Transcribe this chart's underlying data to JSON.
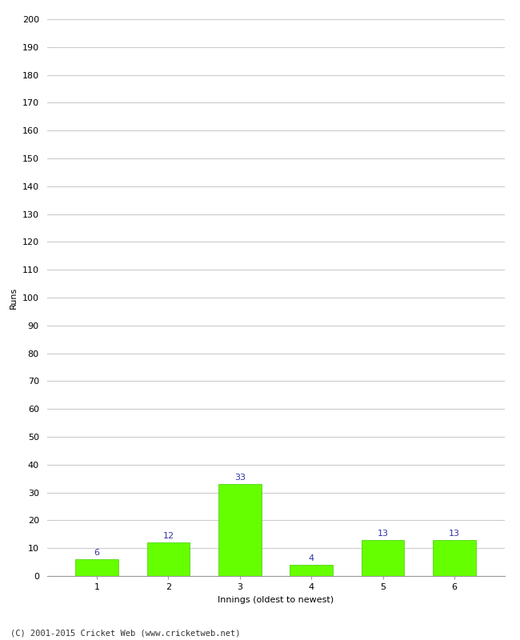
{
  "categories": [
    1,
    2,
    3,
    4,
    5,
    6
  ],
  "values": [
    6,
    12,
    33,
    4,
    13,
    13
  ],
  "bar_color": "#66ff00",
  "bar_edge_color": "#44cc00",
  "xlabel": "Innings (oldest to newest)",
  "ylabel": "Runs",
  "ylim": [
    0,
    200
  ],
  "yticks": [
    0,
    10,
    20,
    30,
    40,
    50,
    60,
    70,
    80,
    90,
    100,
    110,
    120,
    130,
    140,
    150,
    160,
    170,
    180,
    190,
    200
  ],
  "label_color": "#3333aa",
  "label_fontsize": 8,
  "footer": "(C) 2001-2015 Cricket Web (www.cricketweb.net)",
  "background_color": "#ffffff",
  "grid_color": "#cccccc",
  "tick_label_fontsize": 8,
  "axis_label_fontsize": 8
}
